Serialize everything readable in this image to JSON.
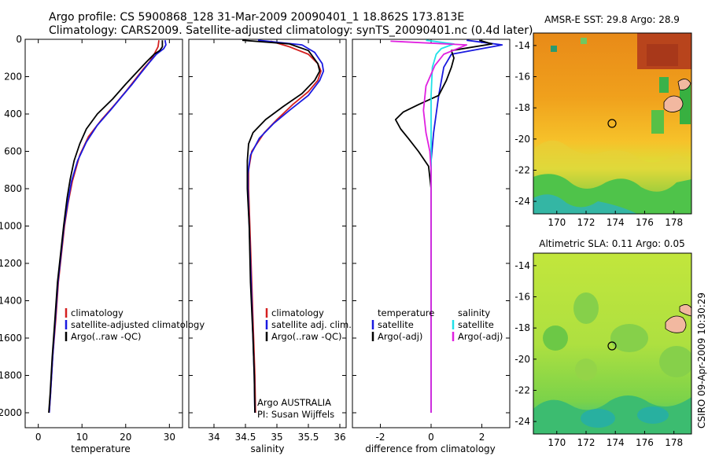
{
  "header": {
    "line1": "Argo profile: CS 5900868_128 31-Mar-2009 20090401_1 18.862S 173.813E",
    "line2": "Climatology: CARS2009. Satellite-adjusted climatology: synTS_20090401.nc (0.4d later)"
  },
  "stamp": "CSIRO 09-Apr-2009 10:30:29",
  "colors": {
    "climatology": "#d42020",
    "satellite": "#1a1ae0",
    "argo": "#000000",
    "sat_salinity_diff": "#20e0e8",
    "argo_salinity_diff": "#e020e0"
  },
  "chart_data": [
    {
      "type": "line",
      "id": "temperature",
      "xlabel": "temperature",
      "ylabel": "",
      "xlim": [
        -3,
        33
      ],
      "ylim": [
        2080,
        0
      ],
      "xticks": [
        0,
        10,
        20,
        30
      ],
      "xtick_labels": [
        "0",
        "10",
        "20",
        "30"
      ],
      "yticks": [
        0,
        200,
        400,
        600,
        800,
        1000,
        1200,
        1400,
        1600,
        1800,
        2000
      ],
      "ytick_labels": [
        "0",
        "200",
        "400",
        "600",
        "800",
        "1000",
        "1200",
        "1400",
        "1600",
        "1800",
        "2000"
      ],
      "legend": [
        "climatology",
        "satellite-adjusted climatology",
        "Argo(..raw -QC)"
      ],
      "series": [
        {
          "name": "climatology",
          "color": "#d42020",
          "points": [
            [
              27.6,
              5
            ],
            [
              27.4,
              40
            ],
            [
              26.5,
              80
            ],
            [
              25.5,
              120
            ],
            [
              24,
              160
            ],
            [
              22,
              220
            ],
            [
              20,
              280
            ],
            [
              17.5,
              350
            ],
            [
              14.5,
              430
            ],
            [
              11.5,
              520
            ],
            [
              9.5,
              620
            ],
            [
              7.8,
              760
            ],
            [
              6.8,
              880
            ],
            [
              6,
              1000
            ],
            [
              5.3,
              1150
            ],
            [
              4.6,
              1300
            ],
            [
              4,
              1500
            ],
            [
              3.3,
              1700
            ],
            [
              2.8,
              1900
            ],
            [
              2.5,
              2000
            ]
          ]
        },
        {
          "name": "satellite-adjusted climatology",
          "color": "#1a1ae0",
          "points": [
            [
              29,
              5
            ],
            [
              29.2,
              30
            ],
            [
              28.7,
              50
            ],
            [
              27,
              80
            ],
            [
              25.2,
              130
            ],
            [
              23.5,
              180
            ],
            [
              21.5,
              240
            ],
            [
              19,
              310
            ],
            [
              16.5,
              380
            ],
            [
              13.5,
              460
            ],
            [
              11,
              550
            ],
            [
              9,
              650
            ],
            [
              7.6,
              760
            ],
            [
              6.7,
              880
            ],
            [
              5.9,
              1000
            ],
            [
              5.2,
              1150
            ],
            [
              4.5,
              1300
            ],
            [
              3.9,
              1500
            ],
            [
              3.3,
              1700
            ],
            [
              2.8,
              1900
            ],
            [
              2.5,
              2000
            ]
          ]
        },
        {
          "name": "Argo(..raw -QC)",
          "color": "#000000",
          "points": [
            [
              28.4,
              5
            ],
            [
              28.4,
              40
            ],
            [
              27.8,
              60
            ],
            [
              26.5,
              80
            ],
            [
              24.8,
              120
            ],
            [
              22.8,
              170
            ],
            [
              20,
              240
            ],
            [
              17,
              320
            ],
            [
              13.5,
              400
            ],
            [
              11,
              480
            ],
            [
              9.5,
              560
            ],
            [
              8.2,
              650
            ],
            [
              7.3,
              750
            ],
            [
              6.6,
              850
            ],
            [
              5.8,
              1000
            ],
            [
              5.1,
              1150
            ],
            [
              4.4,
              1300
            ],
            [
              3.8,
              1500
            ],
            [
              3.2,
              1700
            ],
            [
              2.7,
              1900
            ],
            [
              2.4,
              2000
            ]
          ]
        }
      ]
    },
    {
      "type": "line",
      "id": "salinity",
      "xlabel": "salinity",
      "xlim": [
        33.6,
        36.1
      ],
      "ylim": [
        2080,
        0
      ],
      "xticks": [
        34,
        34.5,
        35,
        35.5,
        36
      ],
      "xtick_labels": [
        "34",
        "34.5",
        "35",
        "35.5",
        "36"
      ],
      "legend": [
        "climatology",
        "satellite adj. clim.",
        "Argo(..raw -QC)"
      ],
      "annotation": [
        "Argo AUSTRALIA",
        "PI: Susan Wijffels"
      ],
      "series": [
        {
          "name": "climatology",
          "color": "#d42020",
          "points": [
            [
              34.9,
              10
            ],
            [
              35.2,
              40
            ],
            [
              35.5,
              80
            ],
            [
              35.65,
              130
            ],
            [
              35.7,
              170
            ],
            [
              35.65,
              220
            ],
            [
              35.5,
              280
            ],
            [
              35.25,
              350
            ],
            [
              35,
              430
            ],
            [
              34.8,
              500
            ],
            [
              34.6,
              600
            ],
            [
              34.55,
              700
            ],
            [
              34.55,
              800
            ],
            [
              34.57,
              1000
            ],
            [
              34.6,
              1300
            ],
            [
              34.63,
              1600
            ],
            [
              34.65,
              1800
            ],
            [
              34.66,
              2000
            ]
          ]
        },
        {
          "name": "satellite adj. clim.",
          "color": "#1a1ae0",
          "points": [
            [
              34.7,
              5
            ],
            [
              35.4,
              30
            ],
            [
              35.6,
              70
            ],
            [
              35.72,
              130
            ],
            [
              35.74,
              170
            ],
            [
              35.68,
              220
            ],
            [
              35.5,
              300
            ],
            [
              35.2,
              380
            ],
            [
              34.95,
              450
            ],
            [
              34.72,
              530
            ],
            [
              34.58,
              620
            ],
            [
              34.54,
              720
            ],
            [
              34.54,
              800
            ],
            [
              34.56,
              1000
            ],
            [
              34.59,
              1300
            ],
            [
              34.62,
              1600
            ],
            [
              34.64,
              1800
            ],
            [
              34.65,
              2000
            ]
          ]
        },
        {
          "name": "Argo(..raw -QC)",
          "color": "#000000",
          "points": [
            [
              34.45,
              5
            ],
            [
              35.2,
              25
            ],
            [
              35.5,
              60
            ],
            [
              35.65,
              130
            ],
            [
              35.68,
              170
            ],
            [
              35.6,
              220
            ],
            [
              35.4,
              290
            ],
            [
              35.1,
              360
            ],
            [
              34.82,
              430
            ],
            [
              34.62,
              500
            ],
            [
              34.55,
              560
            ],
            [
              34.53,
              650
            ],
            [
              34.53,
              800
            ],
            [
              34.56,
              1000
            ],
            [
              34.58,
              1300
            ],
            [
              34.62,
              1600
            ],
            [
              34.64,
              1800
            ],
            [
              34.65,
              2000
            ]
          ]
        }
      ]
    },
    {
      "type": "line",
      "id": "difference",
      "xlabel": "difference from climatology",
      "xlim": [
        -3.1,
        3.1
      ],
      "ylim": [
        2080,
        0
      ],
      "xticks": [
        -2,
        0,
        2
      ],
      "xtick_labels": [
        "-2",
        "0",
        "2"
      ],
      "legend_left": [
        "temperature",
        "satellite",
        "Argo(-adj)"
      ],
      "legend_right": [
        "salinity",
        "satellite",
        "Argo(-adj)"
      ],
      "series": [
        {
          "name": "temperature satellite",
          "color": "#1a1ae0",
          "points": [
            [
              1.4,
              5
            ],
            [
              2.8,
              30
            ],
            [
              2,
              50
            ],
            [
              0.8,
              80
            ],
            [
              0.5,
              150
            ],
            [
              0.3,
              300
            ],
            [
              0.1,
              500
            ],
            [
              0,
              650
            ],
            [
              0,
              2000
            ]
          ]
        },
        {
          "name": "temperature Argo(-adj)",
          "color": "#000000",
          "points": [
            [
              1.9,
              5
            ],
            [
              2.4,
              25
            ],
            [
              0.8,
              60
            ],
            [
              0.9,
              100
            ],
            [
              0.8,
              150
            ],
            [
              0.6,
              220
            ],
            [
              0.3,
              300
            ],
            [
              -0.5,
              350
            ],
            [
              -1.1,
              390
            ],
            [
              -1.4,
              430
            ],
            [
              -1.2,
              480
            ],
            [
              -0.9,
              530
            ],
            [
              -0.5,
              600
            ],
            [
              -0.1,
              680
            ],
            [
              0,
              800
            ],
            [
              0,
              2000
            ]
          ]
        },
        {
          "name": "salinity satellite",
          "color": "#20e0e8",
          "points": [
            [
              -0.2,
              5
            ],
            [
              0.9,
              25
            ],
            [
              0.4,
              50
            ],
            [
              0.2,
              80
            ],
            [
              0.05,
              150
            ],
            [
              0,
              300
            ],
            [
              0,
              2000
            ]
          ]
        },
        {
          "name": "salinity Argo(-adj)",
          "color": "#e020e0",
          "points": [
            [
              -1.6,
              10
            ],
            [
              1.4,
              30
            ],
            [
              0.5,
              80
            ],
            [
              0.15,
              140
            ],
            [
              -0.2,
              250
            ],
            [
              -0.3,
              380
            ],
            [
              -0.2,
              500
            ],
            [
              -0.05,
              600
            ],
            [
              0,
              700
            ],
            [
              0,
              2000
            ]
          ]
        }
      ]
    }
  ],
  "maps": [
    {
      "id": "sst",
      "title": "AMSR-E SST: 29.8 Argo: 28.9",
      "xticks": [
        "170",
        "172",
        "174",
        "176",
        "178"
      ],
      "yticks": [
        "-14",
        "-16",
        "-18",
        "-20",
        "-22",
        "-24"
      ]
    },
    {
      "id": "sla",
      "title": "Altimetric SLA: 0.11 Argo: 0.05",
      "xticks": [
        "170",
        "172",
        "174",
        "176",
        "178"
      ],
      "yticks": [
        "-14",
        "-16",
        "-18",
        "-20",
        "-22",
        "-24"
      ]
    }
  ]
}
